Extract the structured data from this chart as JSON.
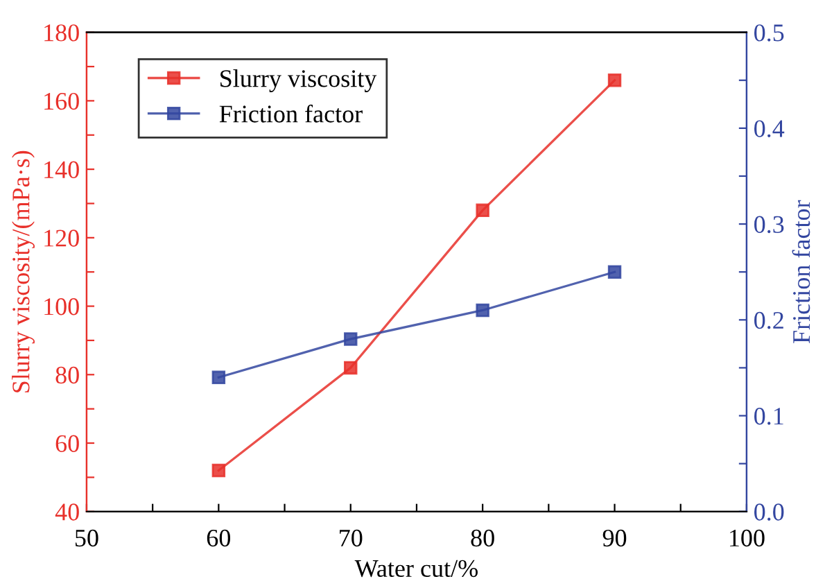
{
  "chart_data": {
    "type": "line",
    "xlabel": "Water cut/%",
    "ylabel": "Slurry viscosity/(mPa·s)",
    "y2label": "Friction factor",
    "x": [
      60,
      70,
      80,
      90
    ],
    "series": [
      {
        "name": "Slurry viscosity",
        "color": "#e8302a",
        "values": [
          52,
          82,
          128,
          166
        ]
      },
      {
        "name": "Friction factor",
        "color": "#3346a0",
        "values": [
          0.14,
          0.18,
          0.21,
          0.25
        ],
        "axis": "y2"
      }
    ],
    "xlim": [
      50,
      100
    ],
    "xticks": [
      50,
      {
        "value": 55,
        "label": null
      },
      60,
      {
        "value": 65,
        "label": null
      },
      70,
      {
        "value": 75,
        "label": null
      },
      80,
      {
        "value": 85,
        "label": null
      },
      90,
      {
        "value": 95,
        "label": null
      },
      100
    ],
    "ylim": [
      40,
      180
    ],
    "yticks": [
      40,
      {
        "value": 50,
        "label": null
      },
      60,
      {
        "value": 70,
        "label": null
      },
      80,
      {
        "value": 90,
        "label": null
      },
      100,
      {
        "value": 110,
        "label": null
      },
      120,
      {
        "value": 130,
        "label": null
      },
      140,
      {
        "value": 150,
        "label": null
      },
      160,
      {
        "value": 170,
        "label": null
      },
      180
    ],
    "y2lim": [
      0,
      0.5
    ],
    "y2ticks": [
      {
        "value": 0,
        "label": "0.0"
      },
      {
        "value": 0.05,
        "label": null
      },
      0.1,
      {
        "value": 0.15,
        "label": null
      },
      0.2,
      {
        "value": 0.25,
        "label": null
      },
      0.3,
      {
        "value": 0.35,
        "label": null
      },
      0.4,
      {
        "value": 0.45,
        "label": null
      },
      0.5
    ],
    "marker": "square",
    "line_style": "solid",
    "legend": "top left",
    "grid": false
  }
}
